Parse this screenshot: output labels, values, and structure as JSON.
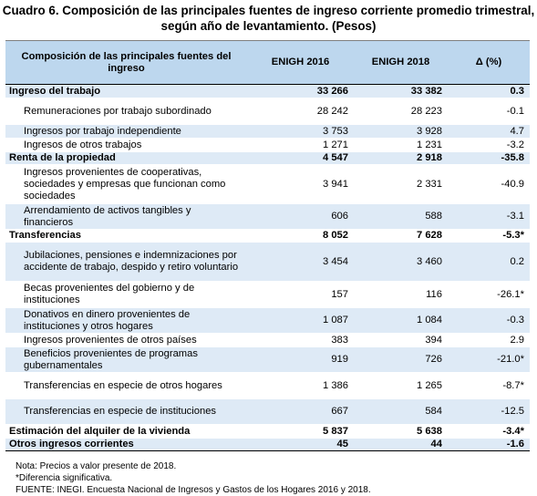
{
  "title_line1": "Cuadro 6. Composición de las principales fuentes de ingreso corriente promedio trimestral,",
  "title_line2": "según año de levantamiento. (Pesos)",
  "headers": {
    "composition": "Composición de las principales fuentes del ingreso",
    "enigh2016": "ENIGH 2016",
    "enigh2018": "ENIGH 2018",
    "delta": "Δ (%)"
  },
  "rows": [
    {
      "label": "Ingreso del trabajo",
      "v2016": "33 266",
      "v2018": "33 382",
      "delta": "0.3"
    },
    {
      "label": "Remuneraciones por trabajo subordinado",
      "v2016": "28 242",
      "v2018": "28 223",
      "delta": "-0.1"
    },
    {
      "label": "Ingresos por trabajo independiente",
      "v2016": "3 753",
      "v2018": "3 928",
      "delta": "4.7"
    },
    {
      "label": "Ingresos de otros trabajos",
      "v2016": "1 271",
      "v2018": "1 231",
      "delta": "-3.2"
    },
    {
      "label": "Renta de la propiedad",
      "v2016": "4 547",
      "v2018": "2 918",
      "delta": "-35.8"
    },
    {
      "label": "Ingresos provenientes de cooperativas, sociedades y empresas que funcionan como sociedades",
      "v2016": "3 941",
      "v2018": "2 331",
      "delta": "-40.9"
    },
    {
      "label": "Arrendamiento de activos tangibles y financieros",
      "v2016": "606",
      "v2018": "588",
      "delta": "-3.1"
    },
    {
      "label": "Transferencias",
      "v2016": "8 052",
      "v2018": "7 628",
      "delta": "-5.3*"
    },
    {
      "label": "Jubilaciones, pensiones e indemnizaciones por accidente de trabajo, despido y retiro voluntario",
      "v2016": "3 454",
      "v2018": "3 460",
      "delta": "0.2"
    },
    {
      "label": "Becas provenientes del gobierno y de instituciones",
      "v2016": "157",
      "v2018": "116",
      "delta": "-26.1*"
    },
    {
      "label": "Donativos en dinero provenientes de instituciones y otros hogares",
      "v2016": "1 087",
      "v2018": "1 084",
      "delta": "-0.3"
    },
    {
      "label": "Ingresos provenientes de otros países",
      "v2016": "383",
      "v2018": "394",
      "delta": "2.9"
    },
    {
      "label": "Beneficios provenientes de programas gubernamentales",
      "v2016": "919",
      "v2018": "726",
      "delta": "-21.0*"
    },
    {
      "label": "Transferencias en especie de otros hogares",
      "v2016": "1 386",
      "v2018": "1 265",
      "delta": "-8.7*"
    },
    {
      "label": "Transferencias en especie de instituciones",
      "v2016": "667",
      "v2018": "584",
      "delta": "-12.5"
    },
    {
      "label": "Estimación del alquiler de la vivienda",
      "v2016": "5 837",
      "v2018": "5 638",
      "delta": "-3.4*"
    },
    {
      "label": "Otros ingresos corrientes",
      "v2016": "45",
      "v2018": "44",
      "delta": "-1.6"
    }
  ],
  "notes": {
    "line1": "Nota: Precios a valor presente de 2018.",
    "line2": "*Diferencia significativa.",
    "line3": "FUENTE: INEGI. Encuesta Nacional de Ingresos y Gastos de los Hogares 2016 y 2018."
  },
  "colors": {
    "header_bg": "#bdd7ee",
    "row_shade": "#deeaf6"
  }
}
